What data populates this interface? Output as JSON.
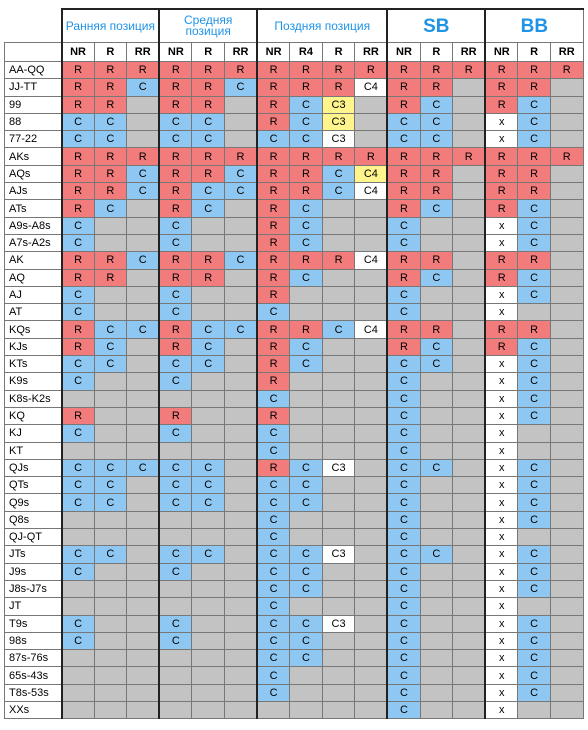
{
  "header": {
    "groups": [
      {
        "title": "Ранняя позиция",
        "columns": [
          "NR",
          "R",
          "RR"
        ]
      },
      {
        "title": "Средняя позиция",
        "columns": [
          "NR",
          "R",
          "RR"
        ]
      },
      {
        "title": "Поздняя позиция",
        "columns": [
          "NR",
          "R4",
          "R",
          "RR"
        ]
      },
      {
        "title": "SB",
        "columns": [
          "NR",
          "R",
          "RR"
        ]
      },
      {
        "title": "BB",
        "columns": [
          "NR",
          "R",
          "RR"
        ]
      }
    ]
  },
  "colors": {
    "R": "#f27c7c",
    "C": "#8ec8f2",
    "x": "#ffffff",
    "C3": "#ffffff",
    "C4": "#ffffff",
    "empty": "#c3c3c3",
    "highlight": "#fff58c"
  },
  "table": {
    "rows": [
      {
        "hand": "AA-QQ",
        "cells": [
          "R",
          "R",
          "R",
          "R",
          "R",
          "R",
          "R",
          "R",
          "R",
          "R",
          "R",
          "R",
          "R",
          "R",
          "R",
          "R"
        ]
      },
      {
        "hand": "JJ-TT",
        "cells": [
          "R",
          "R",
          "C",
          "R",
          "R",
          "C",
          "R",
          "R",
          "R",
          "C4",
          "R",
          "R",
          null,
          "R",
          "R",
          null
        ]
      },
      {
        "hand": "99",
        "cells": [
          "R",
          "R",
          null,
          "R",
          "R",
          null,
          "R",
          "C",
          {
            "text": "C3",
            "highlight": true
          },
          null,
          "R",
          "C",
          null,
          "R",
          "C",
          null
        ]
      },
      {
        "hand": "88",
        "cells": [
          "C",
          "C",
          null,
          "C",
          "C",
          null,
          "R",
          "C",
          {
            "text": "C3",
            "highlight": true
          },
          null,
          "C",
          "C",
          null,
          "x",
          "C",
          null
        ]
      },
      {
        "hand": "77-22",
        "cells": [
          "C",
          "C",
          null,
          "C",
          "C",
          null,
          "C",
          "C",
          "C3",
          null,
          "C",
          "C",
          null,
          "x",
          "C",
          null
        ]
      },
      {
        "hand": "AKs",
        "cells": [
          "R",
          "R",
          "R",
          "R",
          "R",
          "R",
          "R",
          "R",
          "R",
          "R",
          "R",
          "R",
          "R",
          "R",
          "R",
          "R"
        ]
      },
      {
        "hand": "AQs",
        "cells": [
          "R",
          "R",
          "C",
          "R",
          "R",
          "C",
          "R",
          "R",
          "C",
          {
            "text": "C4",
            "highlight": true
          },
          "R",
          "R",
          null,
          "R",
          "R",
          null
        ]
      },
      {
        "hand": "AJs",
        "cells": [
          "R",
          "R",
          "C",
          "R",
          "C",
          "C",
          "R",
          "R",
          "C",
          "C4",
          "R",
          "R",
          null,
          "R",
          "R",
          null
        ]
      },
      {
        "hand": "ATs",
        "cells": [
          "R",
          "C",
          null,
          "R",
          "C",
          null,
          "R",
          "C",
          null,
          null,
          "R",
          "C",
          null,
          "R",
          "C",
          null
        ]
      },
      {
        "hand": "A9s-A8s",
        "cells": [
          "C",
          null,
          null,
          "C",
          null,
          null,
          "R",
          "C",
          null,
          null,
          "C",
          null,
          null,
          "x",
          "C",
          null
        ]
      },
      {
        "hand": "A7s-A2s",
        "cells": [
          "C",
          null,
          null,
          "C",
          null,
          null,
          "R",
          "C",
          null,
          null,
          "C",
          null,
          null,
          "x",
          "C",
          null
        ]
      },
      {
        "hand": "AK",
        "cells": [
          "R",
          "R",
          "C",
          "R",
          "R",
          "C",
          "R",
          "R",
          "R",
          "C4",
          "R",
          "R",
          null,
          "R",
          "R",
          null
        ]
      },
      {
        "hand": "AQ",
        "cells": [
          "R",
          "R",
          null,
          "R",
          "R",
          null,
          "R",
          "C",
          null,
          null,
          "R",
          "C",
          null,
          "R",
          "C",
          null
        ]
      },
      {
        "hand": "AJ",
        "cells": [
          "C",
          null,
          null,
          "C",
          null,
          null,
          "R",
          null,
          null,
          null,
          "C",
          null,
          null,
          "x",
          "C",
          null
        ]
      },
      {
        "hand": "AT",
        "cells": [
          "C",
          null,
          null,
          "C",
          null,
          null,
          "C",
          null,
          null,
          null,
          "C",
          null,
          null,
          "x",
          null,
          null
        ]
      },
      {
        "hand": "KQs",
        "cells": [
          "R",
          "C",
          "C",
          "R",
          "C",
          "C",
          "R",
          "R",
          "C",
          "C4",
          "R",
          "R",
          null,
          "R",
          "R",
          null
        ]
      },
      {
        "hand": "KJs",
        "cells": [
          "R",
          "C",
          null,
          "R",
          "C",
          null,
          "R",
          "C",
          null,
          null,
          "R",
          "C",
          null,
          "R",
          "C",
          null
        ]
      },
      {
        "hand": "KTs",
        "cells": [
          "C",
          "C",
          null,
          "C",
          "C",
          null,
          "R",
          "C",
          null,
          null,
          "C",
          "C",
          null,
          "x",
          "C",
          null
        ]
      },
      {
        "hand": "K9s",
        "cells": [
          "C",
          null,
          null,
          "C",
          null,
          null,
          "R",
          null,
          null,
          null,
          "C",
          null,
          null,
          "x",
          "C",
          null
        ]
      },
      {
        "hand": "K8s-K2s",
        "cells": [
          null,
          null,
          null,
          null,
          null,
          null,
          "C",
          null,
          null,
          null,
          "C",
          null,
          null,
          "x",
          "C",
          null
        ]
      },
      {
        "hand": "KQ",
        "cells": [
          "R",
          null,
          null,
          "R",
          null,
          null,
          "R",
          null,
          null,
          null,
          "C",
          null,
          null,
          "x",
          "C",
          null
        ]
      },
      {
        "hand": "KJ",
        "cells": [
          "C",
          null,
          null,
          "C",
          null,
          null,
          "C",
          null,
          null,
          null,
          "C",
          null,
          null,
          "x",
          null,
          null
        ]
      },
      {
        "hand": "KT",
        "cells": [
          null,
          null,
          null,
          null,
          null,
          null,
          "C",
          null,
          null,
          null,
          "C",
          null,
          null,
          "x",
          null,
          null
        ]
      },
      {
        "hand": "QJs",
        "cells": [
          "C",
          "C",
          "C",
          "C",
          "C",
          null,
          "R",
          "C",
          "C3",
          null,
          "C",
          "C",
          null,
          "x",
          "C",
          null
        ]
      },
      {
        "hand": "QTs",
        "cells": [
          "C",
          "C",
          null,
          "C",
          "C",
          null,
          "C",
          "C",
          null,
          null,
          "C",
          null,
          null,
          "x",
          "C",
          null
        ]
      },
      {
        "hand": "Q9s",
        "cells": [
          "C",
          "C",
          null,
          "C",
          "C",
          null,
          "C",
          "C",
          null,
          null,
          "C",
          null,
          null,
          "x",
          "C",
          null
        ]
      },
      {
        "hand": "Q8s",
        "cells": [
          null,
          null,
          null,
          null,
          null,
          null,
          "C",
          null,
          null,
          null,
          "C",
          null,
          null,
          "x",
          "C",
          null
        ]
      },
      {
        "hand": "QJ-QT",
        "cells": [
          null,
          null,
          null,
          null,
          null,
          null,
          "C",
          null,
          null,
          null,
          "C",
          null,
          null,
          "x",
          null,
          null
        ]
      },
      {
        "hand": "JTs",
        "cells": [
          "C",
          "C",
          null,
          "C",
          "C",
          null,
          "C",
          "C",
          "C3",
          null,
          "C",
          "C",
          null,
          "x",
          "C",
          null
        ]
      },
      {
        "hand": "J9s",
        "cells": [
          "C",
          null,
          null,
          "C",
          null,
          null,
          "C",
          "C",
          null,
          null,
          "C",
          null,
          null,
          "x",
          "C",
          null
        ]
      },
      {
        "hand": "J8s-J7s",
        "cells": [
          null,
          null,
          null,
          null,
          null,
          null,
          "C",
          "C",
          null,
          null,
          "C",
          null,
          null,
          "x",
          "C",
          null
        ]
      },
      {
        "hand": "JT",
        "cells": [
          null,
          null,
          null,
          null,
          null,
          null,
          "C",
          null,
          null,
          null,
          "C",
          null,
          null,
          "x",
          null,
          null
        ]
      },
      {
        "hand": "T9s",
        "cells": [
          "C",
          null,
          null,
          "C",
          null,
          null,
          "C",
          "C",
          "C3",
          null,
          "C",
          null,
          null,
          "x",
          "C",
          null
        ]
      },
      {
        "hand": "98s",
        "cells": [
          "C",
          null,
          null,
          "C",
          null,
          null,
          "C",
          "C",
          null,
          null,
          "C",
          null,
          null,
          "x",
          "C",
          null
        ]
      },
      {
        "hand": "87s-76s",
        "cells": [
          null,
          null,
          null,
          null,
          null,
          null,
          "C",
          "C",
          null,
          null,
          "C",
          null,
          null,
          "x",
          "C",
          null
        ]
      },
      {
        "hand": "65s-43s",
        "cells": [
          null,
          null,
          null,
          null,
          null,
          null,
          "C",
          null,
          null,
          null,
          "C",
          null,
          null,
          "x",
          "C",
          null
        ]
      },
      {
        "hand": "T8s-53s",
        "cells": [
          null,
          null,
          null,
          null,
          null,
          null,
          "C",
          null,
          null,
          null,
          "C",
          null,
          null,
          "x",
          "C",
          null
        ]
      },
      {
        "hand": "XXs",
        "cells": [
          null,
          null,
          null,
          null,
          null,
          null,
          null,
          null,
          null,
          null,
          "C",
          null,
          null,
          "x",
          null,
          null
        ]
      }
    ]
  }
}
